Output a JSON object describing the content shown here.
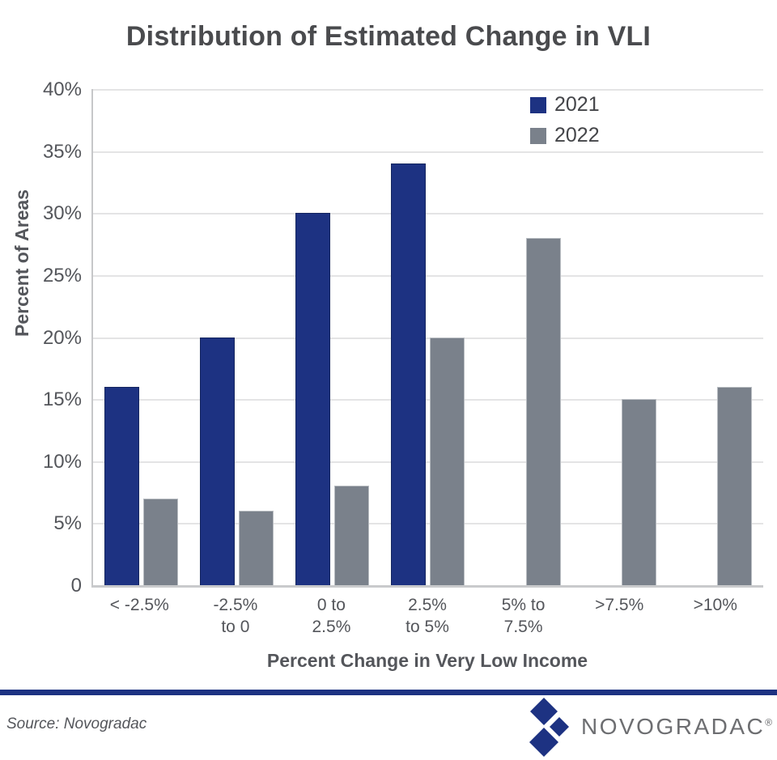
{
  "title": "Distribution of Estimated Change in VLI",
  "chart_data": {
    "type": "bar",
    "title": "Distribution of Estimated Change in VLI",
    "categories": [
      "< -2.5%",
      "-2.5% to 0",
      "0 to 2.5%",
      "2.5% to 5%",
      "5% to 7.5%",
      ">7.5%",
      ">10%"
    ],
    "category_lines": [
      [
        "< -2.5%"
      ],
      [
        "-2.5%",
        "to 0"
      ],
      [
        "0 to",
        "2.5%"
      ],
      [
        "2.5%",
        "to 5%"
      ],
      [
        "5% to",
        "7.5%"
      ],
      [
        ">7.5%"
      ],
      [
        ">10%"
      ]
    ],
    "series": [
      {
        "name": "2021",
        "color": "#1d3282",
        "border": "#15265f",
        "values": [
          16,
          20,
          30,
          34,
          0,
          0,
          0
        ]
      },
      {
        "name": "2022",
        "color": "#7a818b",
        "border": "#b9bdc2",
        "values": [
          7,
          6,
          8,
          20,
          28,
          15,
          16
        ]
      }
    ],
    "xlabel": "Percent Change in Very Low Income",
    "ylabel": "Percent of Areas",
    "ylim": [
      0,
      40
    ],
    "ytick_step": 5,
    "ytick_labels": [
      "40%",
      "35%",
      "30%",
      "25%",
      "20%",
      "15%",
      "10%",
      "5%",
      "0"
    ],
    "grid": true,
    "legend_position": "top-right-inside"
  },
  "legend": [
    {
      "label": "2021",
      "color": "#1d3282"
    },
    {
      "label": "2022",
      "color": "#7a818b"
    }
  ],
  "footer": {
    "source": "Source: Novogradac",
    "brand": "NOVOGRADAC",
    "registered": "®"
  },
  "colors": {
    "accent_navy": "#1d3282",
    "bar_gray": "#7a818b",
    "grid": "#e4e4e5",
    "axis": "#c6c7c9",
    "text": "#54565b",
    "logo_text": "#6d6e71"
  }
}
